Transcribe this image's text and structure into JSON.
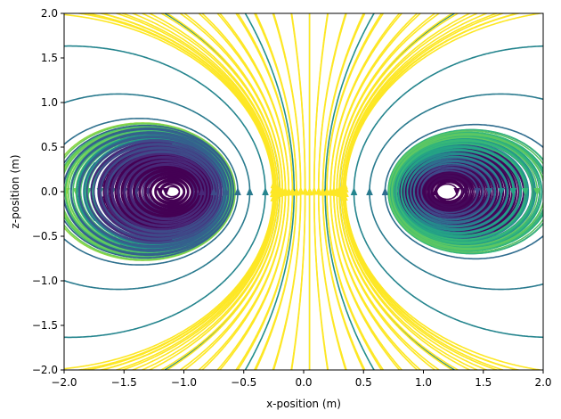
{
  "chart_data": {
    "type": "streamplot",
    "title": "",
    "xlabel": "x-position (m)",
    "ylabel": "z-position (m)",
    "xlim": [
      -2.0,
      2.0
    ],
    "ylim": [
      -2.0,
      2.0
    ],
    "x_ticks": [
      -2.0,
      -1.5,
      -1.0,
      -0.5,
      0.0,
      0.5,
      1.0,
      1.5,
      2.0
    ],
    "y_ticks": [
      -2.0,
      -1.5,
      -1.0,
      -0.5,
      0.0,
      0.5,
      1.0,
      1.5,
      2.0
    ],
    "x_tick_labels": [
      "−2.0",
      "−1.5",
      "−1.0",
      "−0.5",
      "0.0",
      "0.5",
      "1.0",
      "1.5",
      "2.0"
    ],
    "y_tick_labels": [
      "−2.0",
      "−1.5",
      "−1.0",
      "−0.5",
      "0.0",
      "0.5",
      "1.0",
      "1.5",
      "2.0"
    ],
    "grid": false,
    "colormap": "viridis",
    "field": "magnetic field of a current loop (x–z cross-section)",
    "sources": [
      {
        "x": -1.1,
        "z": 0.0,
        "circulation": "counter-clockwise"
      },
      {
        "x": 1.2,
        "z": 0.0,
        "circulation": "clockwise"
      }
    ],
    "central_field_direction": "+z",
    "color_encodes": "field magnitude (dark = strong, light = weak)"
  }
}
